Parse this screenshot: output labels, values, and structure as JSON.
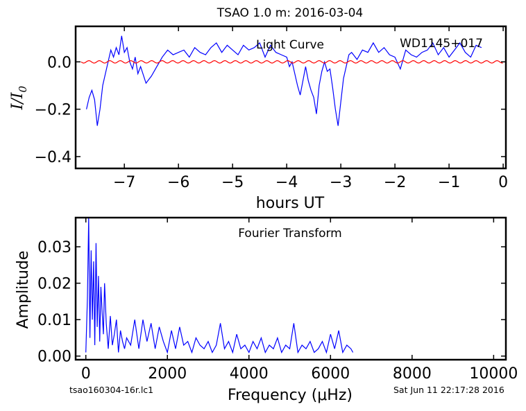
{
  "figure": {
    "title": "TSAO 1.0 m:  2016-03-04",
    "footer_left": "tsao160304-16r.lc1",
    "footer_right": "Sat Jun 11 22:17:28 2016"
  },
  "chart_data": [
    {
      "type": "line",
      "title": "TSAO 1.0 m:  2016-03-04",
      "annotations": [
        "Light Curve",
        "WD1145+017"
      ],
      "xlabel": "hours UT",
      "ylabel": "I/I0",
      "xlim": [
        -7.9,
        0.05
      ],
      "ylim": [
        -0.45,
        0.15
      ],
      "xticks": [
        -7,
        -6,
        -5,
        -4,
        -3,
        -2,
        -1,
        0
      ],
      "xtick_labels": [
        "−7",
        "−6",
        "−5",
        "−4",
        "−3",
        "−2",
        "−1",
        "0"
      ],
      "yticks": [
        0.0,
        -0.2,
        -0.4
      ],
      "ytick_labels": [
        "0.0",
        "−0.2",
        "−0.4"
      ],
      "grid": false,
      "series": [
        {
          "color": "#0000ff",
          "x": [
            -7.7,
            -7.65,
            -7.6,
            -7.55,
            -7.5,
            -7.45,
            -7.4,
            -7.35,
            -7.3,
            -7.25,
            -7.2,
            -7.15,
            -7.1,
            -7.05,
            -7.0,
            -6.95,
            -6.9,
            -6.85,
            -6.8,
            -6.75,
            -6.7,
            -6.6,
            -6.5,
            -6.4,
            -6.3,
            -6.2,
            -6.1,
            -6.0,
            -5.9,
            -5.8,
            -5.7,
            -5.6,
            -5.5,
            -5.4,
            -5.3,
            -5.2,
            -5.1,
            -5.0,
            -4.9,
            -4.8,
            -4.7,
            -4.6,
            -4.5,
            -4.4,
            -4.3,
            -4.2,
            -4.1,
            -4.0,
            -3.95,
            -3.9,
            -3.85,
            -3.8,
            -3.75,
            -3.7,
            -3.65,
            -3.6,
            -3.55,
            -3.5,
            -3.45,
            -3.4,
            -3.35,
            -3.3,
            -3.25,
            -3.2,
            -3.15,
            -3.1,
            -3.05,
            -3.0,
            -2.95,
            -2.9,
            -2.85,
            -2.8,
            -2.7,
            -2.6,
            -2.5,
            -2.4,
            -2.3,
            -2.2,
            -2.1,
            -2.0,
            -1.9,
            -1.8,
            -1.7,
            -1.6,
            -1.5,
            -1.4,
            -1.3,
            -1.2,
            -1.1,
            -1.0,
            -0.9,
            -0.8,
            -0.7,
            -0.6,
            -0.5,
            -0.4
          ],
          "y": [
            -0.2,
            -0.15,
            -0.12,
            -0.16,
            -0.27,
            -0.2,
            -0.1,
            -0.05,
            0.0,
            0.05,
            0.02,
            0.06,
            0.03,
            0.11,
            0.04,
            0.06,
            0.0,
            -0.03,
            0.02,
            -0.05,
            -0.02,
            -0.09,
            -0.06,
            -0.02,
            0.02,
            0.05,
            0.03,
            0.04,
            0.05,
            0.02,
            0.06,
            0.04,
            0.03,
            0.06,
            0.08,
            0.04,
            0.07,
            0.05,
            0.03,
            0.07,
            0.05,
            0.06,
            0.08,
            0.02,
            0.07,
            0.04,
            0.03,
            0.02,
            -0.02,
            0.0,
            -0.05,
            -0.1,
            -0.14,
            -0.08,
            -0.02,
            -0.08,
            -0.12,
            -0.15,
            -0.22,
            -0.1,
            -0.04,
            0.0,
            -0.04,
            -0.03,
            -0.11,
            -0.2,
            -0.27,
            -0.17,
            -0.07,
            -0.02,
            0.03,
            0.04,
            0.01,
            0.05,
            0.04,
            0.08,
            0.04,
            0.06,
            0.03,
            0.02,
            -0.03,
            0.05,
            0.03,
            0.02,
            0.04,
            0.05,
            0.08,
            0.03,
            0.06,
            0.02,
            0.05,
            0.08,
            0.04,
            0.02,
            0.07,
            0.06
          ]
        },
        {
          "color": "#ff0000",
          "x": [
            -7.8,
            0.0
          ],
          "y": [
            0.0,
            0.0
          ],
          "amplitude": 0.005
        }
      ]
    },
    {
      "type": "line",
      "annotations": [
        "Fourier Transform"
      ],
      "xlabel": "Frequency (μHz)",
      "ylabel": "Amplitude",
      "xlim": [
        -250,
        10300
      ],
      "ylim": [
        -0.001,
        0.038
      ],
      "xticks": [
        0,
        2000,
        4000,
        6000,
        8000,
        10000
      ],
      "xtick_labels": [
        "0",
        "2000",
        "4000",
        "6000",
        "8000",
        "10000"
      ],
      "yticks": [
        0.0,
        0.01,
        0.02,
        0.03
      ],
      "ytick_labels": [
        "0.00",
        "0.01",
        "0.02",
        "0.03"
      ],
      "grid": false,
      "series": [
        {
          "color": "#0000ff",
          "x": [
            0,
            40,
            70,
            100,
            130,
            160,
            190,
            220,
            250,
            280,
            310,
            340,
            370,
            400,
            430,
            460,
            500,
            550,
            600,
            650,
            700,
            750,
            800,
            850,
            900,
            950,
            1000,
            1100,
            1200,
            1300,
            1400,
            1500,
            1600,
            1700,
            1800,
            1900,
            2000,
            2100,
            2200,
            2300,
            2400,
            2500,
            2600,
            2700,
            2800,
            2900,
            3000,
            3100,
            3200,
            3300,
            3400,
            3500,
            3600,
            3700,
            3800,
            3900,
            4000,
            4100,
            4200,
            4300,
            4400,
            4500,
            4600,
            4700,
            4800,
            4900,
            5000,
            5100,
            5200,
            5300,
            5400,
            5500,
            5600,
            5700,
            5800,
            5900,
            6000,
            6100,
            6200,
            6300,
            6400,
            6500,
            6550
          ],
          "y": [
            0.001,
            0.016,
            0.038,
            0.005,
            0.029,
            0.01,
            0.026,
            0.003,
            0.031,
            0.008,
            0.022,
            0.004,
            0.019,
            0.012,
            0.006,
            0.02,
            0.009,
            0.002,
            0.011,
            0.003,
            0.006,
            0.01,
            0.001,
            0.007,
            0.004,
            0.002,
            0.005,
            0.003,
            0.01,
            0.002,
            0.01,
            0.004,
            0.009,
            0.002,
            0.008,
            0.004,
            0.001,
            0.007,
            0.002,
            0.008,
            0.003,
            0.004,
            0.001,
            0.005,
            0.003,
            0.002,
            0.004,
            0.001,
            0.003,
            0.009,
            0.002,
            0.004,
            0.001,
            0.006,
            0.002,
            0.003,
            0.001,
            0.004,
            0.002,
            0.005,
            0.001,
            0.003,
            0.002,
            0.005,
            0.001,
            0.003,
            0.002,
            0.009,
            0.001,
            0.003,
            0.002,
            0.004,
            0.001,
            0.002,
            0.004,
            0.001,
            0.006,
            0.002,
            0.007,
            0.001,
            0.003,
            0.002,
            0.001
          ]
        }
      ]
    }
  ]
}
